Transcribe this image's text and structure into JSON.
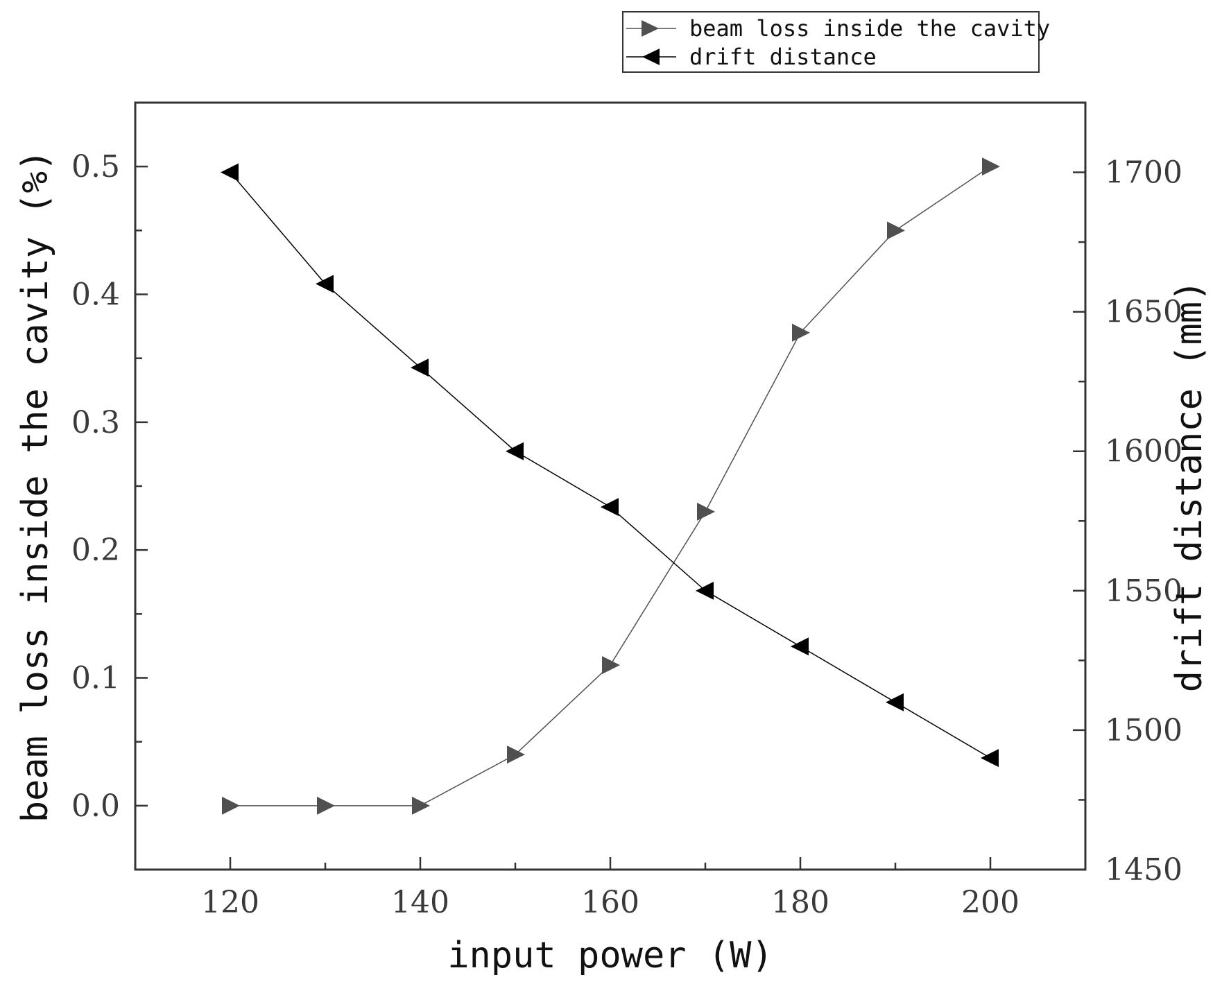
{
  "chart_data": {
    "type": "line",
    "title": "",
    "xlabel": "input power (W)",
    "ylabel": "beam loss inside the cavity (%)",
    "y2label": "drift distance (mm)",
    "xlim": [
      110,
      210
    ],
    "ylim": [
      -0.05,
      0.55
    ],
    "y2lim": [
      1450,
      1725
    ],
    "xticks": [
      120,
      140,
      160,
      180,
      200
    ],
    "yticks": [
      "0.0",
      "0.1",
      "0.2",
      "0.3",
      "0.4",
      "0.5"
    ],
    "y2ticks": [
      1450,
      1500,
      1550,
      1600,
      1650,
      1700
    ],
    "grid": false,
    "legend_position": "top-right, above plot",
    "series": [
      {
        "name": "beam loss inside the cavity",
        "axis": "left",
        "marker": "triangle-right",
        "color": "#505050",
        "x": [
          120,
          130,
          140,
          150,
          160,
          170,
          180,
          190,
          200
        ],
        "y": [
          0.0,
          0.0,
          0.0,
          0.04,
          0.11,
          0.23,
          0.37,
          0.45,
          0.5
        ]
      },
      {
        "name": "drift distance",
        "axis": "right",
        "marker": "triangle-left",
        "color": "#000000",
        "x": [
          120,
          130,
          140,
          150,
          160,
          170,
          180,
          190,
          200
        ],
        "y": [
          1700,
          1660,
          1630,
          1600,
          1580,
          1550,
          1530,
          1510,
          1490
        ]
      }
    ]
  }
}
